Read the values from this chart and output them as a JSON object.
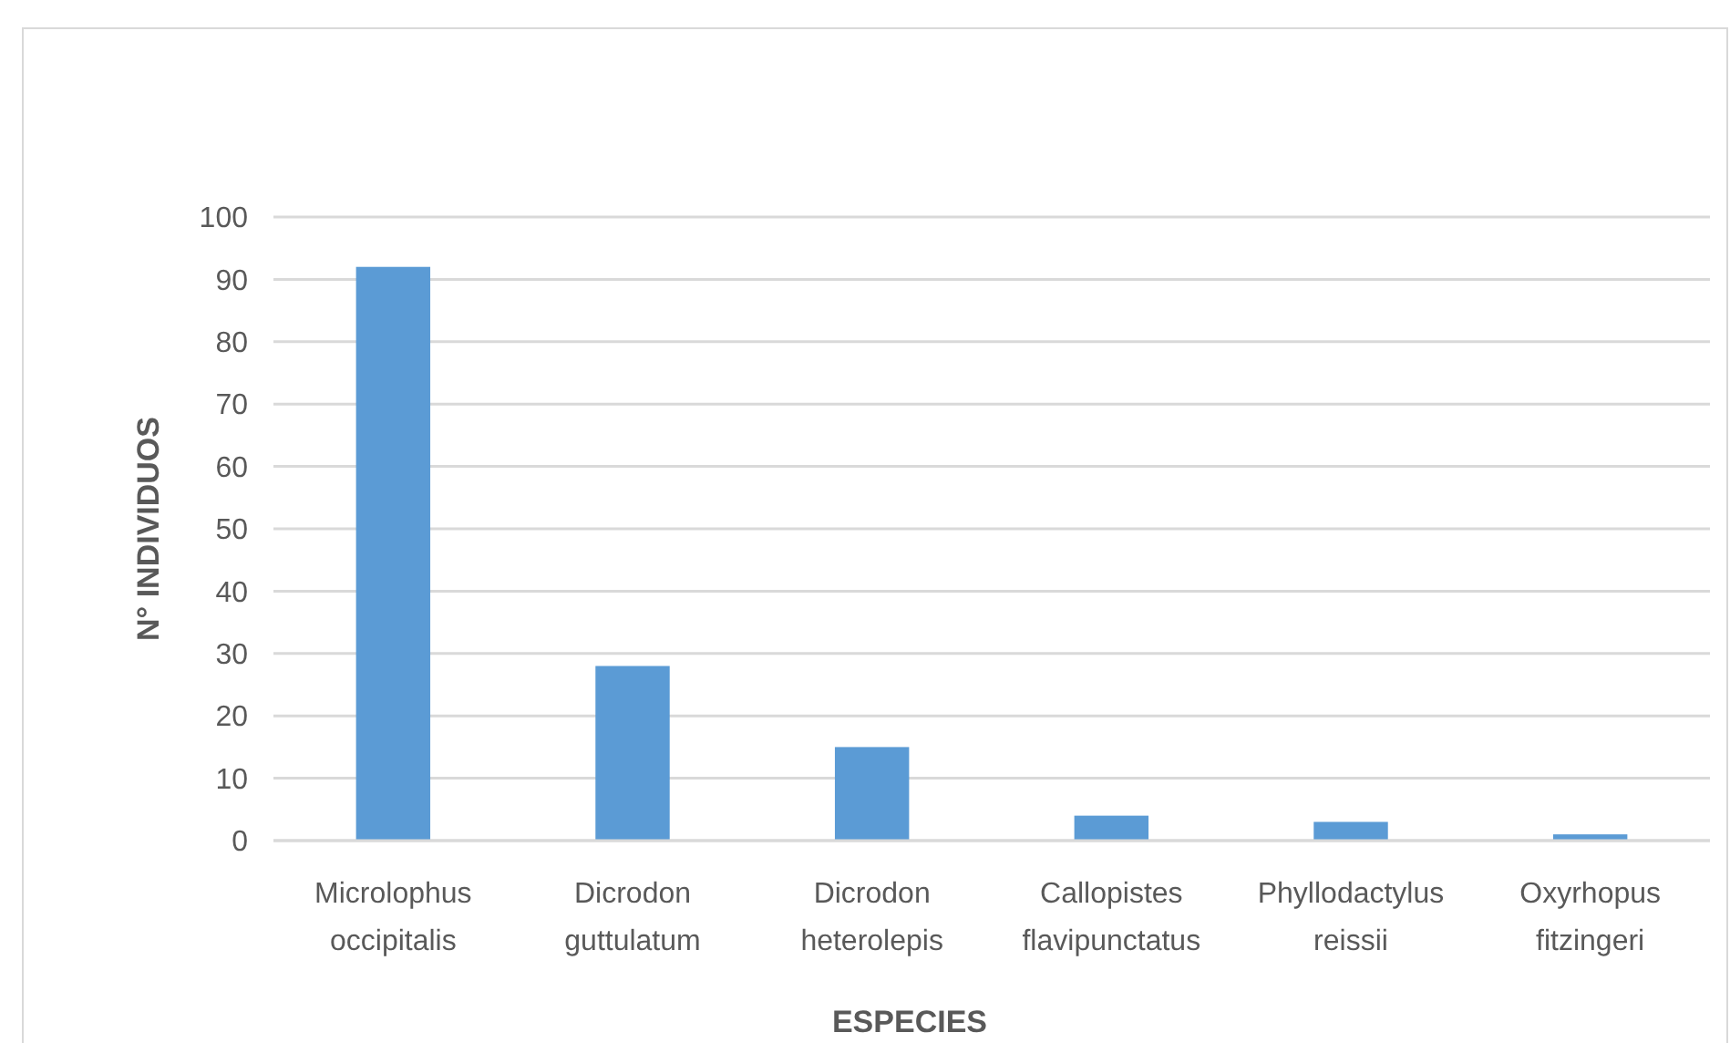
{
  "chart_data": {
    "type": "bar",
    "xlabel": "ESPECIES",
    "ylabel": "N° INDIVIDUOS",
    "categories": [
      "Microlophus occipitalis",
      "Dicrodon guttulatum",
      "Dicrodon heterolepis",
      "Callopistes flavipunctatus",
      "Phyllodactylus reissii",
      "Oxyrhopus fitzingeri"
    ],
    "values": [
      92,
      28,
      15,
      4,
      3,
      1
    ],
    "color": "#5b9bd5",
    "ylim": [
      0,
      100
    ],
    "yticks": [
      0,
      10,
      20,
      30,
      40,
      50,
      60,
      70,
      80,
      90,
      100
    ],
    "grid": "y"
  }
}
